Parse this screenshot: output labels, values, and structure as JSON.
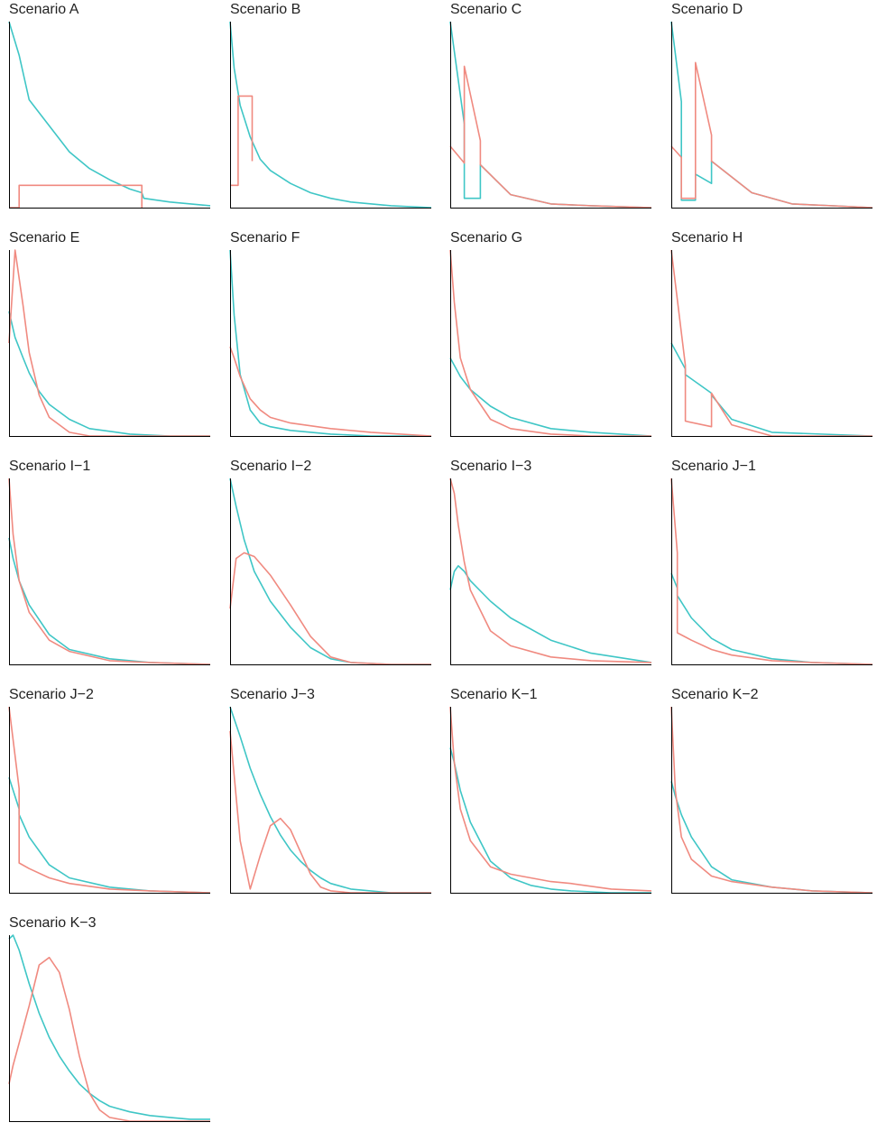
{
  "colors": {
    "series_a": "#F08A80",
    "series_b": "#3FC6C6",
    "axis": "#000000"
  },
  "chart_data": [
    {
      "type": "line",
      "title": "Scenario A",
      "x": [
        0,
        0.05,
        0.1,
        0.2,
        0.3,
        0.4,
        0.5,
        0.6,
        0.66,
        0.67,
        0.8,
        1.0
      ],
      "series": [
        {
          "values": [
            1.0,
            0.82,
            0.58,
            0.44,
            0.3,
            0.21,
            0.15,
            0.1,
            0.08,
            0.05,
            0.03,
            0.01
          ]
        },
        {
          "x": [
            0,
            0.05,
            0.05,
            0.66,
            0.66
          ],
          "values": [
            0,
            0,
            0.12,
            0.12,
            0
          ]
        }
      ]
    },
    {
      "type": "line",
      "title": "Scenario B",
      "x": [
        0,
        0.02,
        0.05,
        0.1,
        0.15,
        0.2,
        0.3,
        0.4,
        0.5,
        0.6,
        0.8,
        1.0
      ],
      "series": [
        {
          "values": [
            1.0,
            0.75,
            0.55,
            0.38,
            0.26,
            0.2,
            0.13,
            0.08,
            0.05,
            0.03,
            0.01,
            0.0
          ]
        },
        {
          "x": [
            0,
            0.04,
            0.04,
            0.11,
            0.11
          ],
          "values": [
            0.12,
            0.12,
            0.6,
            0.6,
            0.25
          ]
        }
      ]
    },
    {
      "type": "line",
      "title": "Scenario C",
      "x": [
        0,
        0.07,
        0.07,
        0.15,
        0.15,
        0.3,
        0.5,
        0.7,
        1.0
      ],
      "series": [
        {
          "values": [
            1.0,
            0.45,
            0.05,
            0.05,
            0.23,
            0.07,
            0.02,
            0.01,
            0.0
          ]
        },
        {
          "values": [
            0.33,
            0.24,
            0.76,
            0.36,
            0.23,
            0.07,
            0.02,
            0.01,
            0.0
          ]
        }
      ]
    },
    {
      "type": "line",
      "title": "Scenario D",
      "x": [
        0,
        0.05,
        0.05,
        0.12,
        0.12,
        0.2,
        0.2,
        0.4,
        0.6,
        1.0
      ],
      "series": [
        {
          "values": [
            1.0,
            0.57,
            0.04,
            0.04,
            0.18,
            0.13,
            0.25,
            0.08,
            0.02,
            0.0
          ]
        },
        {
          "values": [
            0.33,
            0.27,
            0.05,
            0.05,
            0.78,
            0.39,
            0.25,
            0.08,
            0.02,
            0.0
          ]
        }
      ]
    },
    {
      "type": "line",
      "title": "Scenario E",
      "x": [
        0,
        0.03,
        0.07,
        0.1,
        0.15,
        0.2,
        0.3,
        0.4,
        0.6,
        0.8,
        1.0
      ],
      "series": [
        {
          "values": [
            0.67,
            0.53,
            0.42,
            0.34,
            0.24,
            0.17,
            0.09,
            0.04,
            0.01,
            0.0,
            0.0
          ]
        },
        {
          "values": [
            0.5,
            1.0,
            0.7,
            0.45,
            0.22,
            0.1,
            0.02,
            0.0,
            0.0,
            0.0,
            0.0
          ]
        }
      ]
    },
    {
      "type": "line",
      "title": "Scenario F",
      "x": [
        0,
        0.02,
        0.05,
        0.1,
        0.15,
        0.2,
        0.3,
        0.5,
        0.7,
        1.0
      ],
      "series": [
        {
          "values": [
            1.0,
            0.65,
            0.33,
            0.14,
            0.07,
            0.05,
            0.03,
            0.01,
            0.0,
            0.0
          ]
        },
        {
          "values": [
            0.48,
            0.42,
            0.32,
            0.2,
            0.14,
            0.1,
            0.07,
            0.04,
            0.02,
            0.0
          ]
        }
      ]
    },
    {
      "type": "line",
      "title": "Scenario G",
      "x": [
        0,
        0.02,
        0.05,
        0.1,
        0.2,
        0.3,
        0.5,
        0.7,
        1.0
      ],
      "series": [
        {
          "values": [
            0.42,
            0.38,
            0.32,
            0.25,
            0.16,
            0.1,
            0.04,
            0.02,
            0.0
          ]
        },
        {
          "values": [
            1.0,
            0.72,
            0.42,
            0.25,
            0.09,
            0.04,
            0.01,
            0.0,
            0.0
          ]
        }
      ]
    },
    {
      "type": "line",
      "title": "Scenario H",
      "x": [
        0,
        0.07,
        0.07,
        0.2,
        0.2,
        0.3,
        0.5,
        1.0
      ],
      "series": [
        {
          "values": [
            0.5,
            0.36,
            0.33,
            0.23,
            0.22,
            0.09,
            0.02,
            0.0
          ]
        },
        {
          "values": [
            1.0,
            0.38,
            0.08,
            0.05,
            0.23,
            0.06,
            0.0,
            0.0
          ]
        }
      ]
    },
    {
      "type": "line",
      "title": "Scenario I−1",
      "x": [
        0,
        0.02,
        0.05,
        0.1,
        0.2,
        0.3,
        0.5,
        0.7,
        1.0
      ],
      "series": [
        {
          "values": [
            0.68,
            0.57,
            0.45,
            0.32,
            0.16,
            0.08,
            0.03,
            0.01,
            0.0
          ]
        },
        {
          "values": [
            1.0,
            0.7,
            0.45,
            0.28,
            0.13,
            0.07,
            0.02,
            0.01,
            0.0
          ]
        }
      ]
    },
    {
      "type": "line",
      "title": "Scenario I−2",
      "x": [
        0,
        0.03,
        0.07,
        0.12,
        0.2,
        0.3,
        0.4,
        0.5,
        0.6,
        0.8,
        1.0
      ],
      "series": [
        {
          "values": [
            1.0,
            0.85,
            0.67,
            0.5,
            0.34,
            0.2,
            0.09,
            0.03,
            0.01,
            0.0,
            0.0
          ]
        },
        {
          "values": [
            0.3,
            0.57,
            0.6,
            0.58,
            0.48,
            0.32,
            0.15,
            0.04,
            0.01,
            0.0,
            0.0
          ]
        }
      ]
    },
    {
      "type": "line",
      "title": "Scenario I−3",
      "x": [
        0,
        0.02,
        0.04,
        0.07,
        0.1,
        0.2,
        0.3,
        0.5,
        0.7,
        1.0
      ],
      "series": [
        {
          "values": [
            0.4,
            0.5,
            0.53,
            0.5,
            0.45,
            0.34,
            0.25,
            0.13,
            0.06,
            0.01
          ]
        },
        {
          "values": [
            1.0,
            0.92,
            0.75,
            0.55,
            0.4,
            0.18,
            0.1,
            0.04,
            0.02,
            0.01
          ]
        }
      ]
    },
    {
      "type": "line",
      "title": "Scenario J−1",
      "x": [
        0,
        0.03,
        0.03,
        0.1,
        0.2,
        0.3,
        0.5,
        0.7,
        1.0
      ],
      "series": [
        {
          "values": [
            0.49,
            0.41,
            0.37,
            0.25,
            0.14,
            0.08,
            0.03,
            0.01,
            0.0
          ]
        },
        {
          "values": [
            1.0,
            0.6,
            0.17,
            0.13,
            0.08,
            0.05,
            0.02,
            0.01,
            0.0
          ]
        }
      ]
    },
    {
      "type": "line",
      "title": "Scenario J−2",
      "x": [
        0,
        0.05,
        0.05,
        0.1,
        0.2,
        0.3,
        0.5,
        0.7,
        1.0
      ],
      "series": [
        {
          "values": [
            0.62,
            0.45,
            0.42,
            0.3,
            0.15,
            0.08,
            0.03,
            0.01,
            0.0
          ]
        },
        {
          "values": [
            1.0,
            0.56,
            0.16,
            0.13,
            0.08,
            0.05,
            0.02,
            0.01,
            0.0
          ]
        }
      ]
    },
    {
      "type": "line",
      "title": "Scenario J−3",
      "x": [
        0,
        0.05,
        0.1,
        0.15,
        0.2,
        0.25,
        0.3,
        0.35,
        0.4,
        0.45,
        0.5,
        0.6,
        0.8,
        1.0
      ],
      "series": [
        {
          "values": [
            1.0,
            0.84,
            0.67,
            0.53,
            0.41,
            0.31,
            0.23,
            0.17,
            0.12,
            0.08,
            0.05,
            0.02,
            0.0,
            0.0
          ]
        },
        {
          "values": [
            0.87,
            0.28,
            0.02,
            0.2,
            0.36,
            0.4,
            0.34,
            0.22,
            0.1,
            0.03,
            0.01,
            0.0,
            0.0,
            0.0
          ]
        }
      ]
    },
    {
      "type": "line",
      "title": "Scenario K−1",
      "x": [
        0,
        0.02,
        0.05,
        0.1,
        0.2,
        0.3,
        0.4,
        0.5,
        0.6,
        0.8,
        1.0
      ],
      "series": [
        {
          "values": [
            0.78,
            0.7,
            0.55,
            0.38,
            0.17,
            0.08,
            0.04,
            0.02,
            0.01,
            0.0,
            0.0
          ]
        },
        {
          "values": [
            1.0,
            0.7,
            0.45,
            0.28,
            0.14,
            0.1,
            0.08,
            0.06,
            0.05,
            0.02,
            0.01
          ]
        }
      ]
    },
    {
      "type": "line",
      "title": "Scenario K−2",
      "x": [
        0,
        0.02,
        0.05,
        0.1,
        0.2,
        0.3,
        0.5,
        0.7,
        1.0
      ],
      "series": [
        {
          "values": [
            0.6,
            0.52,
            0.42,
            0.3,
            0.14,
            0.07,
            0.03,
            0.01,
            0.0
          ]
        },
        {
          "values": [
            1.0,
            0.55,
            0.3,
            0.18,
            0.09,
            0.06,
            0.03,
            0.01,
            0.0
          ]
        }
      ]
    },
    {
      "type": "line",
      "title": "Scenario K−3",
      "x": [
        0,
        0.02,
        0.05,
        0.1,
        0.15,
        0.2,
        0.25,
        0.3,
        0.35,
        0.4,
        0.45,
        0.5,
        0.6,
        0.7,
        0.8,
        0.9,
        1.0
      ],
      "series": [
        {
          "values": [
            0.98,
            1.0,
            0.92,
            0.74,
            0.58,
            0.45,
            0.35,
            0.27,
            0.2,
            0.15,
            0.11,
            0.08,
            0.05,
            0.03,
            0.02,
            0.01,
            0.01
          ]
        },
        {
          "values": [
            0.2,
            0.3,
            0.42,
            0.62,
            0.84,
            0.88,
            0.8,
            0.6,
            0.35,
            0.15,
            0.06,
            0.02,
            0.0,
            0.0,
            0.0,
            0.0,
            0.0
          ]
        }
      ]
    }
  ]
}
